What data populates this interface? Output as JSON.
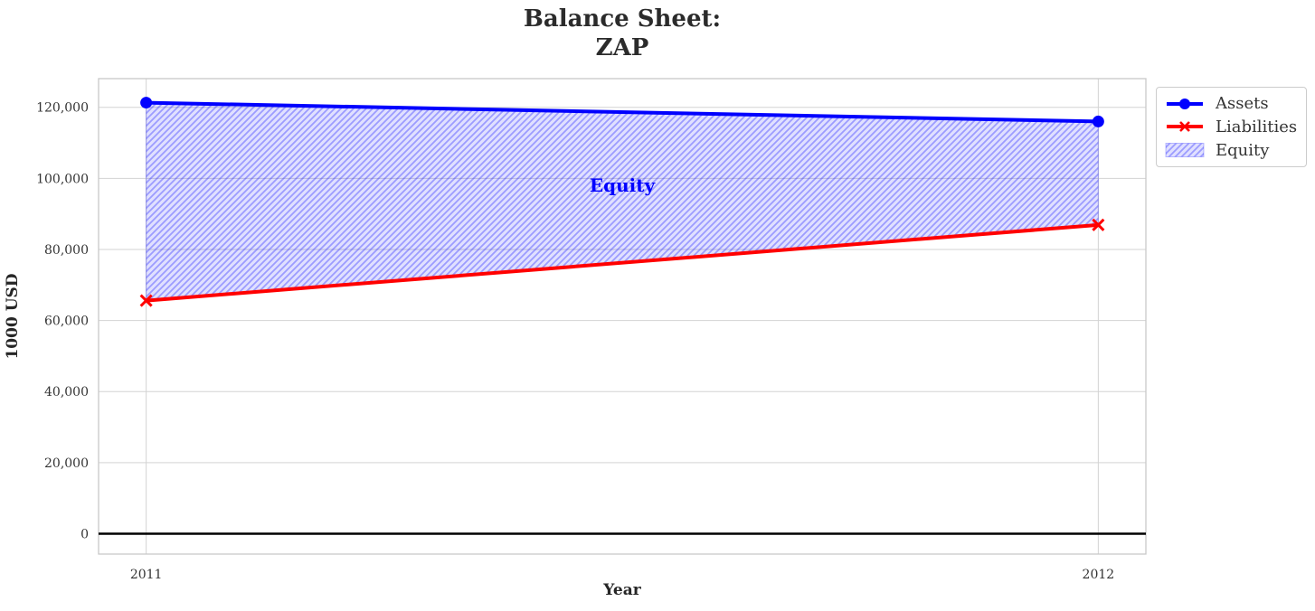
{
  "title": {
    "line1": "Balance Sheet:",
    "line2": "ZAP"
  },
  "axis": {
    "x_label": "Year",
    "y_label": "1000 USD"
  },
  "annotation": {
    "label": "Equity"
  },
  "legend": {
    "items": [
      {
        "label": "Assets",
        "swatch": "line-circle-marker",
        "color": "#0000ff"
      },
      {
        "label": "Liabilities",
        "swatch": "line-x-marker",
        "color": "#ff0000"
      },
      {
        "label": "Equity",
        "swatch": "hatched-patch",
        "color": "#0000ff"
      }
    ]
  },
  "chart_data": {
    "type": "line",
    "title": "Balance Sheet: ZAP",
    "xlabel": "Year",
    "ylabel": "1000 USD",
    "x": [
      2011,
      2012
    ],
    "series": [
      {
        "name": "Assets",
        "values": [
          121300,
          116000
        ],
        "color": "#0000ff",
        "marker": "circle",
        "linewidth": 4
      },
      {
        "name": "Liabilities",
        "values": [
          65600,
          86900
        ],
        "color": "#ff0000",
        "marker": "x",
        "linewidth": 4
      }
    ],
    "fill_between": {
      "label": "Equity",
      "upper_series": "Assets",
      "lower_series": "Liabilities",
      "equity_values": [
        55700,
        29100
      ],
      "hatch": "///",
      "fill_color": "rgba(0,0,255,0.12)",
      "hatch_color": "rgba(0,0,255,0.30)",
      "edge_color": "rgba(0,0,255,0.25)"
    },
    "xticks": {
      "values": [
        2011,
        2012
      ],
      "labels": [
        "2011",
        "2012"
      ]
    },
    "yticks": {
      "values": [
        0,
        20000,
        40000,
        60000,
        80000,
        100000,
        120000
      ],
      "labels": [
        "0",
        "20,000",
        "40,000",
        "60,000",
        "80,000",
        "100,000",
        "120,000"
      ]
    },
    "xlim": [
      2010.95,
      2012.05
    ],
    "ylim": [
      -5722,
      128063
    ],
    "grid": true,
    "zero_line": {
      "y": 0,
      "color": "#000000",
      "width": 2.5
    },
    "legend_position": "outside-top-right"
  },
  "colors": {
    "background": "#ffffff",
    "grid": "#d3d3d3",
    "plot_border": "#c8c8c8",
    "title_text": "#2b2b2b",
    "tick_text": "#333333",
    "annotation_text": "#0000ff",
    "legend_border": "#cccccc"
  }
}
